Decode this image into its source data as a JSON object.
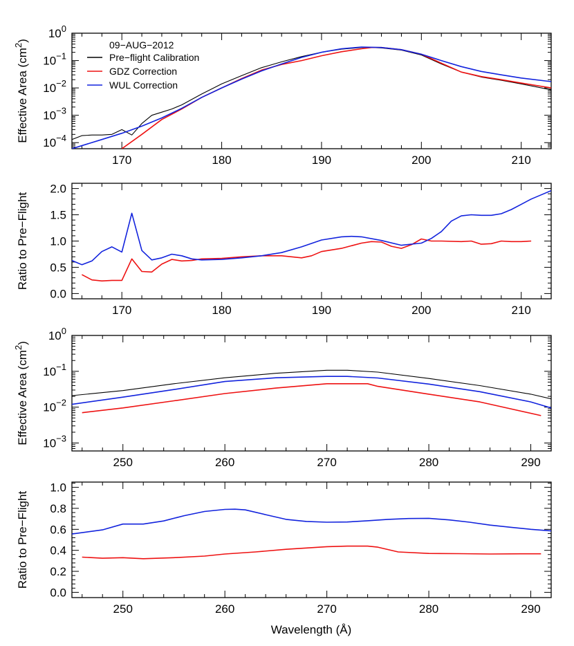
{
  "figure": {
    "x_title": "Wavelength (Å)"
  },
  "colors": {
    "preflight": "#000000",
    "gdz": "#ee1111",
    "wul": "#1122dd",
    "axis": "#000000"
  },
  "chart_data": [
    {
      "type": "line",
      "panel": "top-effective-area",
      "ylabel": "Effective Area (cm²)",
      "yscale": "log",
      "xlim": [
        165,
        213
      ],
      "ylim": [
        6e-05,
        1
      ],
      "xticks": [
        170,
        180,
        190,
        200,
        210
      ],
      "yticks": [
        {
          "value": 1,
          "base": "10",
          "exp": "0"
        },
        {
          "value": 0.1,
          "base": "10",
          "exp": "−1"
        },
        {
          "value": 0.01,
          "base": "10",
          "exp": "−2"
        },
        {
          "value": 0.001,
          "base": "10",
          "exp": "−3"
        },
        {
          "value": 0.0001,
          "base": "10",
          "exp": "−4"
        }
      ],
      "legend": {
        "title": "09−AUG−2012",
        "position": "top-left",
        "entries": [
          "Pre−flight Calibration",
          "GDZ Correction",
          "WUL Correction"
        ]
      },
      "series": [
        {
          "name": "Pre−flight Calibration",
          "color": "preflight",
          "x": [
            165,
            166,
            167,
            168,
            169,
            170,
            171,
            172,
            173,
            174,
            175,
            176,
            178,
            180,
            182,
            184,
            186,
            188,
            190,
            192,
            194,
            195,
            196,
            198,
            200,
            202,
            204,
            206,
            208,
            210,
            213
          ],
          "y": [
            0.00013,
            0.00018,
            0.00019,
            0.00019,
            0.0002,
            0.0003,
            0.00019,
            0.0005,
            0.001,
            0.0013,
            0.0017,
            0.0024,
            0.006,
            0.014,
            0.028,
            0.055,
            0.09,
            0.14,
            0.2,
            0.26,
            0.3,
            0.3,
            0.29,
            0.24,
            0.16,
            0.075,
            0.038,
            0.025,
            0.019,
            0.014,
            0.0085
          ]
        },
        {
          "name": "GDZ Correction",
          "color": "gdz",
          "x": [
            170,
            172,
            174,
            176,
            178,
            180,
            182,
            184,
            186,
            188,
            190,
            192,
            194,
            195,
            196,
            198,
            200,
            202,
            204,
            206,
            208,
            210,
            213
          ],
          "y": [
            6e-05,
            0.0002,
            0.0007,
            0.0017,
            0.0045,
            0.01,
            0.022,
            0.045,
            0.072,
            0.1,
            0.15,
            0.21,
            0.27,
            0.3,
            0.3,
            0.25,
            0.17,
            0.08,
            0.038,
            0.026,
            0.02,
            0.015,
            0.01
          ]
        },
        {
          "name": "WUL Correction",
          "color": "wul",
          "x": [
            165,
            168,
            170,
            172,
            174,
            176,
            178,
            180,
            182,
            184,
            186,
            188,
            190,
            192,
            194,
            196,
            198,
            200,
            202,
            204,
            206,
            208,
            210,
            213
          ],
          "y": [
            6e-05,
            0.00013,
            0.00022,
            0.0004,
            0.0008,
            0.0018,
            0.0045,
            0.01,
            0.021,
            0.042,
            0.075,
            0.13,
            0.2,
            0.27,
            0.31,
            0.3,
            0.25,
            0.17,
            0.1,
            0.06,
            0.04,
            0.03,
            0.023,
            0.017
          ]
        }
      ]
    },
    {
      "type": "line",
      "panel": "top-ratio",
      "ylabel": "Ratio to Pre−Flight",
      "yscale": "linear",
      "xlim": [
        165,
        213
      ],
      "ylim": [
        -0.1,
        2.1
      ],
      "xticks": [
        170,
        180,
        190,
        200,
        210
      ],
      "yticks": [
        {
          "value": 0.0,
          "label": "0.0"
        },
        {
          "value": 0.5,
          "label": "0.5"
        },
        {
          "value": 1.0,
          "label": "1.0"
        },
        {
          "value": 1.5,
          "label": "1.5"
        },
        {
          "value": 2.0,
          "label": "2.0"
        }
      ],
      "series": [
        {
          "name": "GDZ Correction",
          "color": "gdz",
          "x": [
            166,
            167,
            168,
            169,
            170,
            171,
            172,
            173,
            174,
            175,
            176,
            177,
            178,
            180,
            182,
            184,
            186,
            188,
            189,
            190,
            192,
            194,
            195,
            196,
            197,
            198,
            199,
            200,
            201,
            202,
            204,
            205,
            206,
            207,
            208,
            209,
            210,
            211
          ],
          "y": [
            0.36,
            0.26,
            0.24,
            0.25,
            0.25,
            0.66,
            0.42,
            0.41,
            0.56,
            0.65,
            0.62,
            0.63,
            0.66,
            0.67,
            0.7,
            0.72,
            0.72,
            0.68,
            0.72,
            0.8,
            0.86,
            0.96,
            0.99,
            0.98,
            0.9,
            0.86,
            0.93,
            1.04,
            1.0,
            1.0,
            0.99,
            1.0,
            0.94,
            0.95,
            1.0,
            0.99,
            0.99,
            1.0
          ]
        },
        {
          "name": "WUL Correction",
          "color": "wul",
          "x": [
            165,
            166,
            167,
            168,
            169,
            170,
            171,
            172,
            173,
            174,
            175,
            176,
            177,
            178,
            180,
            182,
            184,
            186,
            188,
            190,
            192,
            193,
            194,
            196,
            198,
            200,
            201,
            202,
            203,
            204,
            205,
            206,
            207,
            208,
            209,
            210,
            211,
            212,
            213
          ],
          "y": [
            0.63,
            0.55,
            0.62,
            0.8,
            0.89,
            0.79,
            1.53,
            0.82,
            0.64,
            0.68,
            0.75,
            0.72,
            0.66,
            0.64,
            0.65,
            0.68,
            0.72,
            0.78,
            0.89,
            1.02,
            1.08,
            1.09,
            1.08,
            1.01,
            0.92,
            0.96,
            1.05,
            1.18,
            1.38,
            1.48,
            1.5,
            1.49,
            1.49,
            1.52,
            1.6,
            1.7,
            1.8,
            1.88,
            1.96
          ]
        }
      ]
    },
    {
      "type": "line",
      "panel": "bottom-effective-area",
      "ylabel": "Effective Area (cm²)",
      "yscale": "log",
      "xlim": [
        245,
        292
      ],
      "ylim": [
        0.0006,
        1
      ],
      "xticks": [
        250,
        260,
        270,
        280,
        290
      ],
      "yticks": [
        {
          "value": 1,
          "base": "10",
          "exp": "0"
        },
        {
          "value": 0.1,
          "base": "10",
          "exp": "−1"
        },
        {
          "value": 0.01,
          "base": "10",
          "exp": "−2"
        },
        {
          "value": 0.001,
          "base": "10",
          "exp": "−3"
        }
      ],
      "series": [
        {
          "name": "Pre−flight Calibration",
          "color": "preflight",
          "x": [
            245,
            250,
            255,
            260,
            265,
            270,
            272,
            275,
            280,
            285,
            290,
            292
          ],
          "y": [
            0.021,
            0.029,
            0.045,
            0.066,
            0.088,
            0.107,
            0.107,
            0.095,
            0.063,
            0.04,
            0.023,
            0.017
          ]
        },
        {
          "name": "GDZ Correction",
          "color": "gdz",
          "x": [
            246,
            250,
            255,
            260,
            265,
            270,
            274,
            275,
            280,
            285,
            291
          ],
          "y": [
            0.007,
            0.0095,
            0.015,
            0.024,
            0.034,
            0.045,
            0.045,
            0.038,
            0.023,
            0.014,
            0.0058
          ]
        },
        {
          "name": "WUL Correction",
          "color": "wul",
          "x": [
            245,
            250,
            255,
            260,
            265,
            270,
            272,
            275,
            280,
            285,
            290,
            292
          ],
          "y": [
            0.012,
            0.019,
            0.031,
            0.052,
            0.066,
            0.072,
            0.072,
            0.065,
            0.044,
            0.027,
            0.014,
            0.0095
          ]
        }
      ]
    },
    {
      "type": "line",
      "panel": "bottom-ratio",
      "ylabel": "Ratio to Pre−Flight",
      "xlabel": "Wavelength (Å)",
      "yscale": "linear",
      "xlim": [
        245,
        292
      ],
      "ylim": [
        -0.05,
        1.05
      ],
      "xticks": [
        250,
        260,
        270,
        280,
        290
      ],
      "yticks": [
        {
          "value": 0.0,
          "label": "0.0"
        },
        {
          "value": 0.2,
          "label": "0.2"
        },
        {
          "value": 0.4,
          "label": "0.4"
        },
        {
          "value": 0.6,
          "label": "0.6"
        },
        {
          "value": 0.8,
          "label": "0.8"
        },
        {
          "value": 1.0,
          "label": "1.0"
        }
      ],
      "series": [
        {
          "name": "GDZ Correction",
          "color": "gdz",
          "x": [
            246,
            248,
            250,
            252,
            255,
            258,
            260,
            263,
            266,
            270,
            272,
            274,
            275,
            277,
            280,
            283,
            286,
            289,
            291
          ],
          "y": [
            0.335,
            0.325,
            0.33,
            0.32,
            0.33,
            0.345,
            0.365,
            0.385,
            0.41,
            0.435,
            0.44,
            0.44,
            0.43,
            0.385,
            0.37,
            0.368,
            0.365,
            0.367,
            0.367
          ]
        },
        {
          "name": "WUL Correction",
          "color": "wul",
          "x": [
            245,
            248,
            250,
            252,
            254,
            256,
            258,
            260,
            261,
            262,
            264,
            266,
            268,
            270,
            272,
            274,
            276,
            278,
            280,
            282,
            284,
            286,
            288,
            290,
            292
          ],
          "y": [
            0.555,
            0.595,
            0.65,
            0.65,
            0.68,
            0.73,
            0.77,
            0.79,
            0.792,
            0.785,
            0.74,
            0.695,
            0.675,
            0.668,
            0.67,
            0.682,
            0.695,
            0.703,
            0.705,
            0.69,
            0.668,
            0.64,
            0.62,
            0.6,
            0.585
          ]
        }
      ]
    }
  ]
}
